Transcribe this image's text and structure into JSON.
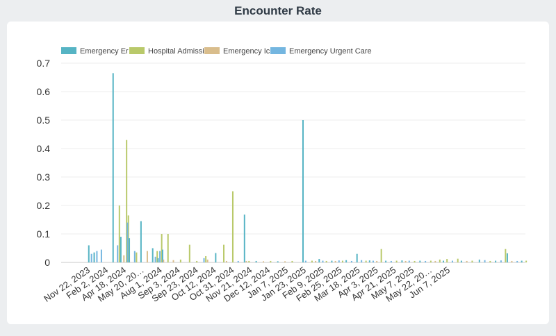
{
  "title": "Encounter Rate",
  "chart_data": {
    "type": "bar",
    "title": "Encounter Rate",
    "xlabel": "",
    "ylabel": "",
    "ylim": [
      0,
      0.7
    ],
    "yticks": [
      0,
      0.1,
      0.2,
      0.3,
      0.4,
      0.5,
      0.6,
      0.7
    ],
    "grid": true,
    "legend_position": "top-left",
    "x_tick_labels": [
      "Nov 22, 2023",
      "Feb 2, 2024",
      "Apr 18, 2024",
      "May 20, 20…",
      "Aug 1, 2024",
      "Sep 3, 2024",
      "Sep 23, 2024",
      "Oct 12, 2024",
      "Oct 31, 2024",
      "Nov 21, 2024",
      "Dec 12, 2024",
      "Jan 7, 2025",
      "Jan 23, 2025",
      "Feb 9, 2025",
      "Feb 25, 2025",
      "Mar 18, 2025",
      "Apr 3, 2025",
      "Apr 21, 2025",
      "May 7, 2025",
      "May 22, 20…",
      "Jun 7, 2025"
    ],
    "series": [
      {
        "name": "Emergency Er",
        "color": "#56b4c4"
      },
      {
        "name": "Hospital Admission",
        "color": "#b9c96a"
      },
      {
        "name": "Emergency Icu",
        "color": "#d9bd8c"
      },
      {
        "name": "Emergency Urgent Care",
        "color": "#74b6e0"
      }
    ],
    "points": [
      {
        "pos": 0.3,
        "series": 0,
        "value": 0.06
      },
      {
        "pos": 0.45,
        "series": 3,
        "value": 0.03
      },
      {
        "pos": 0.6,
        "series": 0,
        "value": 0.035
      },
      {
        "pos": 0.75,
        "series": 3,
        "value": 0.04
      },
      {
        "pos": 1.0,
        "series": 3,
        "value": 0.045
      },
      {
        "pos": 1.65,
        "series": 0,
        "value": 0.665
      },
      {
        "pos": 1.9,
        "series": 3,
        "value": 0.06
      },
      {
        "pos": 2.0,
        "series": 1,
        "value": 0.2
      },
      {
        "pos": 2.08,
        "series": 0,
        "value": 0.09
      },
      {
        "pos": 2.25,
        "series": 2,
        "value": 0.025
      },
      {
        "pos": 2.4,
        "series": 1,
        "value": 0.43
      },
      {
        "pos": 2.5,
        "series": 1,
        "value": 0.165
      },
      {
        "pos": 2.55,
        "series": 0,
        "value": 0.085
      },
      {
        "pos": 2.45,
        "series": 3,
        "value": 0.14
      },
      {
        "pos": 2.85,
        "series": 3,
        "value": 0.04
      },
      {
        "pos": 2.95,
        "series": 1,
        "value": 0.035
      },
      {
        "pos": 3.2,
        "series": 0,
        "value": 0.145
      },
      {
        "pos": 3.55,
        "series": 2,
        "value": 0.04
      },
      {
        "pos": 3.85,
        "series": 0,
        "value": 0.05
      },
      {
        "pos": 4.0,
        "series": 3,
        "value": 0.02
      },
      {
        "pos": 4.1,
        "series": 1,
        "value": 0.04
      },
      {
        "pos": 4.15,
        "series": 0,
        "value": 0.015
      },
      {
        "pos": 4.25,
        "series": 3,
        "value": 0.04
      },
      {
        "pos": 4.35,
        "series": 1,
        "value": 0.1
      },
      {
        "pos": 4.4,
        "series": 0,
        "value": 0.045
      },
      {
        "pos": 4.45,
        "series": 2,
        "value": 0.01
      },
      {
        "pos": 4.7,
        "series": 1,
        "value": 0.1
      },
      {
        "pos": 5.0,
        "series": 2,
        "value": 0.008
      },
      {
        "pos": 5.4,
        "series": 1,
        "value": 0.01
      },
      {
        "pos": 5.9,
        "series": 1,
        "value": 0.062
      },
      {
        "pos": 6.3,
        "series": 1,
        "value": 0.005
      },
      {
        "pos": 6.7,
        "series": 3,
        "value": 0.015
      },
      {
        "pos": 6.8,
        "series": 1,
        "value": 0.022
      },
      {
        "pos": 6.9,
        "series": 2,
        "value": 0.01
      },
      {
        "pos": 7.35,
        "series": 0,
        "value": 0.033
      },
      {
        "pos": 7.8,
        "series": 1,
        "value": 0.062
      },
      {
        "pos": 7.95,
        "series": 2,
        "value": 0.005
      },
      {
        "pos": 8.3,
        "series": 1,
        "value": 0.25
      },
      {
        "pos": 8.6,
        "series": 3,
        "value": 0.005
      },
      {
        "pos": 8.95,
        "series": 0,
        "value": 0.168
      },
      {
        "pos": 9.05,
        "series": 2,
        "value": 0.005
      },
      {
        "pos": 9.2,
        "series": 1,
        "value": 0.005
      },
      {
        "pos": 9.6,
        "series": 0,
        "value": 0.005
      },
      {
        "pos": 10.0,
        "series": 2,
        "value": 0.004
      },
      {
        "pos": 10.4,
        "series": 1,
        "value": 0.005
      },
      {
        "pos": 10.8,
        "series": 0,
        "value": 0.004
      },
      {
        "pos": 11.2,
        "series": 2,
        "value": 0.004
      },
      {
        "pos": 11.6,
        "series": 1,
        "value": 0.005
      },
      {
        "pos": 12.2,
        "series": 0,
        "value": 0.5
      },
      {
        "pos": 12.35,
        "series": 3,
        "value": 0.006
      },
      {
        "pos": 12.7,
        "series": 1,
        "value": 0.006
      },
      {
        "pos": 12.9,
        "series": 2,
        "value": 0.005
      },
      {
        "pos": 13.1,
        "series": 0,
        "value": 0.012
      },
      {
        "pos": 13.3,
        "series": 3,
        "value": 0.006
      },
      {
        "pos": 13.5,
        "series": 1,
        "value": 0.005
      },
      {
        "pos": 13.8,
        "series": 0,
        "value": 0.006
      },
      {
        "pos": 14.0,
        "series": 2,
        "value": 0.005
      },
      {
        "pos": 14.2,
        "series": 3,
        "value": 0.007
      },
      {
        "pos": 14.4,
        "series": 1,
        "value": 0.006
      },
      {
        "pos": 14.6,
        "series": 0,
        "value": 0.008
      },
      {
        "pos": 14.9,
        "series": 3,
        "value": 0.005
      },
      {
        "pos": 15.2,
        "series": 0,
        "value": 0.03
      },
      {
        "pos": 15.45,
        "series": 3,
        "value": 0.008
      },
      {
        "pos": 15.7,
        "series": 1,
        "value": 0.006
      },
      {
        "pos": 15.9,
        "series": 0,
        "value": 0.007
      },
      {
        "pos": 16.1,
        "series": 3,
        "value": 0.006
      },
      {
        "pos": 16.3,
        "series": 2,
        "value": 0.005
      },
      {
        "pos": 16.55,
        "series": 1,
        "value": 0.047
      },
      {
        "pos": 16.8,
        "series": 0,
        "value": 0.006
      },
      {
        "pos": 17.1,
        "series": 3,
        "value": 0.005
      },
      {
        "pos": 17.4,
        "series": 1,
        "value": 0.006
      },
      {
        "pos": 17.7,
        "series": 0,
        "value": 0.007
      },
      {
        "pos": 17.9,
        "series": 2,
        "value": 0.005
      },
      {
        "pos": 18.1,
        "series": 3,
        "value": 0.006
      },
      {
        "pos": 18.4,
        "series": 1,
        "value": 0.005
      },
      {
        "pos": 18.7,
        "series": 0,
        "value": 0.006
      },
      {
        "pos": 19.0,
        "series": 3,
        "value": 0.005
      },
      {
        "pos": 19.3,
        "series": 1,
        "value": 0.006
      },
      {
        "pos": 19.55,
        "series": 2,
        "value": 0.005
      },
      {
        "pos": 19.8,
        "series": 1,
        "value": 0.01
      },
      {
        "pos": 20.0,
        "series": 0,
        "value": 0.006
      },
      {
        "pos": 20.2,
        "series": 1,
        "value": 0.012
      },
      {
        "pos": 20.5,
        "series": 3,
        "value": 0.006
      },
      {
        "pos": 20.8,
        "series": 1,
        "value": 0.013
      },
      {
        "pos": 21.0,
        "series": 0,
        "value": 0.006
      },
      {
        "pos": 21.3,
        "series": 2,
        "value": 0.005
      },
      {
        "pos": 21.6,
        "series": 1,
        "value": 0.006
      },
      {
        "pos": 22.0,
        "series": 0,
        "value": 0.01
      },
      {
        "pos": 22.3,
        "series": 3,
        "value": 0.008
      },
      {
        "pos": 22.6,
        "series": 1,
        "value": 0.005
      },
      {
        "pos": 22.9,
        "series": 0,
        "value": 0.006
      },
      {
        "pos": 23.2,
        "series": 3,
        "value": 0.007
      },
      {
        "pos": 23.45,
        "series": 1,
        "value": 0.047
      },
      {
        "pos": 23.55,
        "series": 0,
        "value": 0.032
      },
      {
        "pos": 23.8,
        "series": 2,
        "value": 0.005
      },
      {
        "pos": 24.1,
        "series": 3,
        "value": 0.005
      },
      {
        "pos": 24.35,
        "series": 0,
        "value": 0.006
      },
      {
        "pos": 24.6,
        "series": 1,
        "value": 0.006
      }
    ]
  }
}
